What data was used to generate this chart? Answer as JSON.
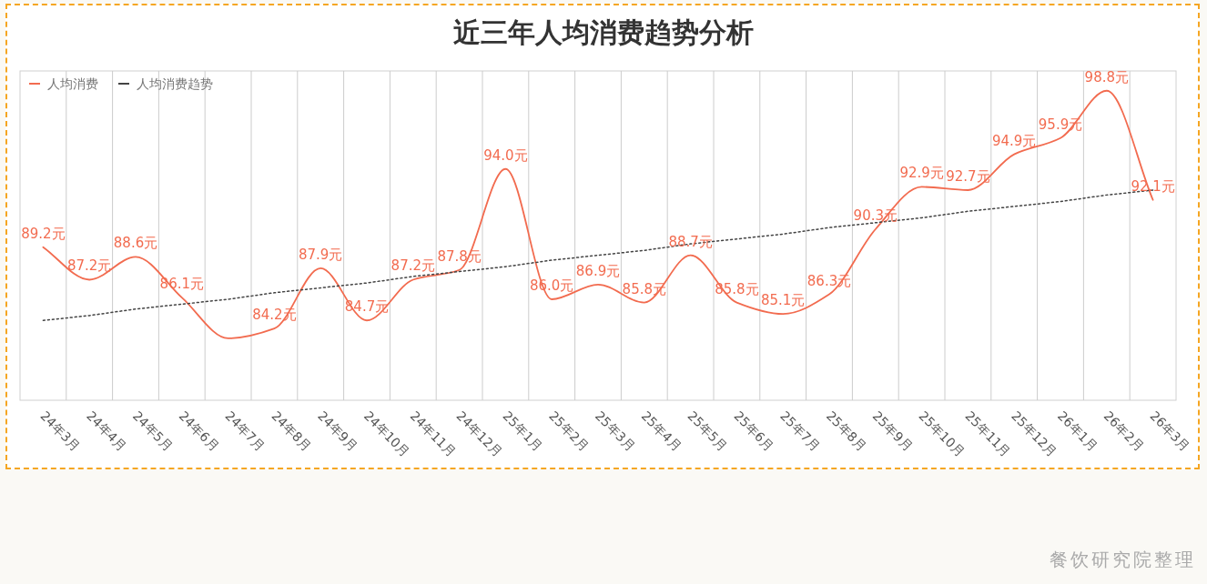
{
  "chart_data": {
    "type": "line",
    "title": "近三年人均消费趋势分析",
    "categories": [
      "24年3月",
      "24年4月",
      "24年5月",
      "24年6月",
      "24年7月",
      "24年8月",
      "24年9月",
      "24年10月",
      "24年11月",
      "24年12月",
      "25年1月",
      "25年2月",
      "25年3月",
      "25年4月",
      "25年5月",
      "25年6月",
      "25年7月",
      "25年8月",
      "25年9月",
      "25年10月",
      "25年11月",
      "25年12月",
      "26年1月",
      "26年2月",
      "26年3月"
    ],
    "series": [
      {
        "name": "人均消费",
        "color": "#f26b4f",
        "line_style": "solid",
        "values": [
          89.2,
          87.2,
          88.6,
          86.1,
          83.6,
          84.2,
          87.9,
          84.7,
          87.2,
          87.8,
          94.0,
          86.0,
          86.9,
          85.8,
          88.7,
          85.8,
          85.1,
          86.3,
          90.3,
          92.9,
          92.7,
          94.9,
          95.9,
          98.8,
          92.1
        ],
        "value_labels": [
          "89.2元",
          "87.2元",
          "88.6元",
          "86.1元",
          null,
          "84.2元",
          "87.9元",
          "84.7元",
          "87.2元",
          "87.8元",
          "94.0元",
          "86.0元",
          "86.9元",
          "85.8元",
          "88.7元",
          "85.8元",
          "85.1元",
          "86.3元",
          "90.3元",
          "92.9元",
          "92.7元",
          "94.9元",
          "95.9元",
          "98.8元",
          "92.1元"
        ]
      },
      {
        "name": "人均消费趋势",
        "color": "#444444",
        "line_style": "dotted",
        "values": [
          84.7,
          85.0,
          85.4,
          85.7,
          86.0,
          86.4,
          86.7,
          87.0,
          87.4,
          87.7,
          88.0,
          88.4,
          88.7,
          89.0,
          89.4,
          89.7,
          90.0,
          90.4,
          90.7,
          91.0,
          91.4,
          91.7,
          92.0,
          92.4,
          92.7
        ]
      }
    ],
    "grid": "x",
    "legend": "top left",
    "marker": "none",
    "annotations": [
      "餐饮研究院整理"
    ]
  }
}
